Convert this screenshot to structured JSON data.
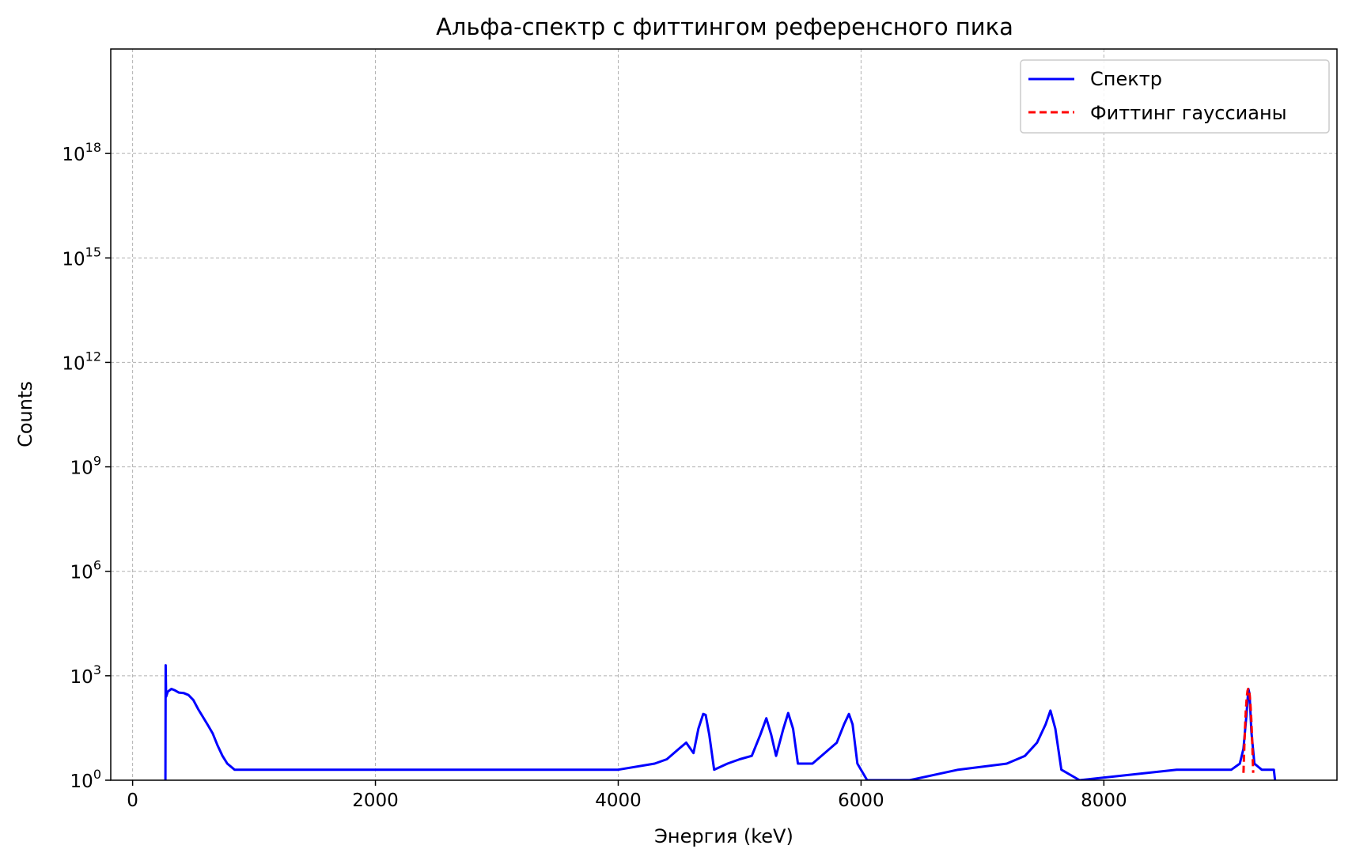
{
  "chart_data": {
    "type": "line",
    "title": "Альфа-спектр с фиттингом референсного пика",
    "xlabel": "Энергия (keV)",
    "ylabel": "Counts",
    "yscale": "log",
    "xlim": [
      -180,
      9920
    ],
    "ylim": [
      1,
      1e+21
    ],
    "x_ticks": [
      {
        "value": 0,
        "label": "0"
      },
      {
        "value": 2000,
        "label": "2000"
      },
      {
        "value": 4000,
        "label": "4000"
      },
      {
        "value": 6000,
        "label": "6000"
      },
      {
        "value": 8000,
        "label": "8000"
      }
    ],
    "y_ticks": [
      {
        "value": 1,
        "base": "10",
        "exp": "0"
      },
      {
        "value": 1000,
        "base": "10",
        "exp": "3"
      },
      {
        "value": 1000000,
        "base": "10",
        "exp": "6"
      },
      {
        "value": 1000000000,
        "base": "10",
        "exp": "9"
      },
      {
        "value": 1000000000000,
        "base": "10",
        "exp": "12"
      },
      {
        "value": 1000000000000000,
        "base": "10",
        "exp": "15"
      },
      {
        "value": 1000000000000000000,
        "base": "10",
        "exp": "18"
      }
    ],
    "grid": true,
    "legend_position": "top-right",
    "series": [
      {
        "name": "Спектр",
        "color": "#0000ff",
        "style": "solid",
        "points": [
          [
            270,
            1
          ],
          [
            272,
            2000
          ],
          [
            276,
            250
          ],
          [
            290,
            350
          ],
          [
            320,
            420
          ],
          [
            350,
            380
          ],
          [
            380,
            330
          ],
          [
            420,
            320
          ],
          [
            460,
            280
          ],
          [
            500,
            200
          ],
          [
            540,
            110
          ],
          [
            580,
            65
          ],
          [
            620,
            38
          ],
          [
            660,
            22
          ],
          [
            700,
            10
          ],
          [
            740,
            5
          ],
          [
            780,
            3
          ],
          [
            840,
            2
          ],
          [
            1000,
            2
          ],
          [
            1500,
            2
          ],
          [
            2000,
            2
          ],
          [
            2500,
            2
          ],
          [
            3000,
            2
          ],
          [
            3500,
            2
          ],
          [
            4000,
            2
          ],
          [
            4300,
            3
          ],
          [
            4400,
            4
          ],
          [
            4500,
            8
          ],
          [
            4560,
            12
          ],
          [
            4620,
            6
          ],
          [
            4660,
            30
          ],
          [
            4700,
            80
          ],
          [
            4720,
            75
          ],
          [
            4750,
            20
          ],
          [
            4790,
            2
          ],
          [
            4900,
            3
          ],
          [
            5000,
            4
          ],
          [
            5100,
            5
          ],
          [
            5170,
            20
          ],
          [
            5220,
            60
          ],
          [
            5260,
            20
          ],
          [
            5300,
            5
          ],
          [
            5360,
            30
          ],
          [
            5400,
            85
          ],
          [
            5440,
            30
          ],
          [
            5480,
            3
          ],
          [
            5600,
            3
          ],
          [
            5700,
            6
          ],
          [
            5800,
            12
          ],
          [
            5860,
            40
          ],
          [
            5900,
            80
          ],
          [
            5930,
            40
          ],
          [
            5970,
            3
          ],
          [
            6050,
            1
          ],
          [
            6400,
            1
          ],
          [
            6800,
            2
          ],
          [
            7200,
            3
          ],
          [
            7350,
            5
          ],
          [
            7450,
            12
          ],
          [
            7520,
            40
          ],
          [
            7560,
            100
          ],
          [
            7600,
            30
          ],
          [
            7650,
            2
          ],
          [
            7800,
            1
          ],
          [
            8600,
            2
          ],
          [
            8900,
            2
          ],
          [
            9050,
            2
          ],
          [
            9120,
            3
          ],
          [
            9150,
            8
          ],
          [
            9175,
            80
          ],
          [
            9190,
            420
          ],
          [
            9200,
            300
          ],
          [
            9215,
            25
          ],
          [
            9240,
            3
          ],
          [
            9300,
            2
          ],
          [
            9400,
            2
          ],
          [
            9410,
            1
          ]
        ]
      },
      {
        "name": "Фиттинг гауссианы",
        "color": "#ff0000",
        "style": "dashed",
        "gaussian": {
          "amplitude": 420,
          "mu": 9190,
          "sigma": 12,
          "xmin": 9150,
          "xmax": 9230
        }
      }
    ]
  }
}
